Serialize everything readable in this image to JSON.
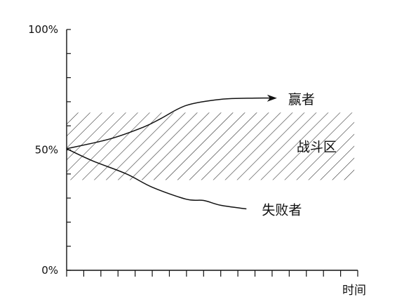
{
  "chart_data": {
    "type": "line",
    "title": "",
    "xlabel": "时间",
    "ylabel": "",
    "xlim": [
      0,
      17
    ],
    "ylim": [
      0,
      100
    ],
    "x_ticks": [
      0,
      1,
      2,
      3,
      4,
      5,
      6,
      7,
      8,
      9,
      10,
      11,
      12,
      13,
      14,
      15,
      16,
      17
    ],
    "y_tick_labels": [
      {
        "value": 100,
        "label": "100%"
      },
      {
        "value": 50,
        "label": "50%"
      },
      {
        "value": 0,
        "label": "0%"
      }
    ],
    "y_minor_ticks": [
      0,
      10,
      20,
      30,
      40,
      50,
      60,
      70,
      80,
      90,
      100
    ],
    "band": {
      "label": "战斗区",
      "y_range": [
        37.5,
        65.5
      ],
      "x_range": [
        0,
        16.8
      ],
      "fill": "hatched"
    },
    "series": [
      {
        "name": "赢者",
        "arrow": true,
        "x": [
          0,
          2.5,
          4.5,
          5.5,
          7,
          9,
          11,
          12.2
        ],
        "y": [
          50.5,
          54.5,
          59.5,
          63,
          68.5,
          71,
          71.5,
          71.5
        ]
      },
      {
        "name": "失败者",
        "arrow": false,
        "x": [
          0,
          1.5,
          3.5,
          5,
          7,
          8,
          9,
          10.5
        ],
        "y": [
          50.5,
          45.5,
          40,
          34.5,
          29.5,
          29,
          27,
          25.5
        ]
      }
    ],
    "colors": {
      "line": "#111111",
      "hatch": "#222222",
      "axis": "#111111"
    }
  }
}
